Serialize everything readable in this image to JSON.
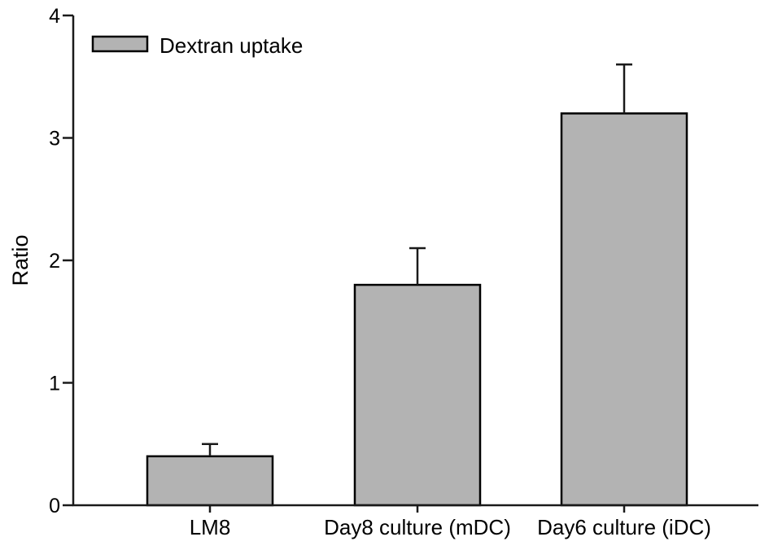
{
  "page": {
    "background": "#ffffff"
  },
  "chart_data": {
    "type": "bar",
    "title": "",
    "xlabel": "",
    "ylabel": "Ratio",
    "categories": [
      "LM8",
      "Day8 culture (mDC)",
      "Day6 culture (iDC)"
    ],
    "series": [
      {
        "name": "Dextran uptake",
        "values": [
          0.4,
          1.8,
          3.2
        ],
        "errors": [
          0.1,
          0.3,
          0.4
        ]
      }
    ],
    "ylim": [
      0,
      4
    ],
    "y_ticks": [
      0,
      1,
      2,
      3,
      4
    ],
    "y_tick_labels": [
      "0",
      "1",
      "2",
      "3",
      "4"
    ],
    "grid": false,
    "legend": {
      "position": "top-left",
      "label": "Dextran uptake"
    },
    "colors": {
      "bar_fill": "#b3b3b3",
      "bar_stroke": "#000000",
      "axis": "#1a1a1a",
      "error_bar": "#1a1a1a"
    }
  }
}
